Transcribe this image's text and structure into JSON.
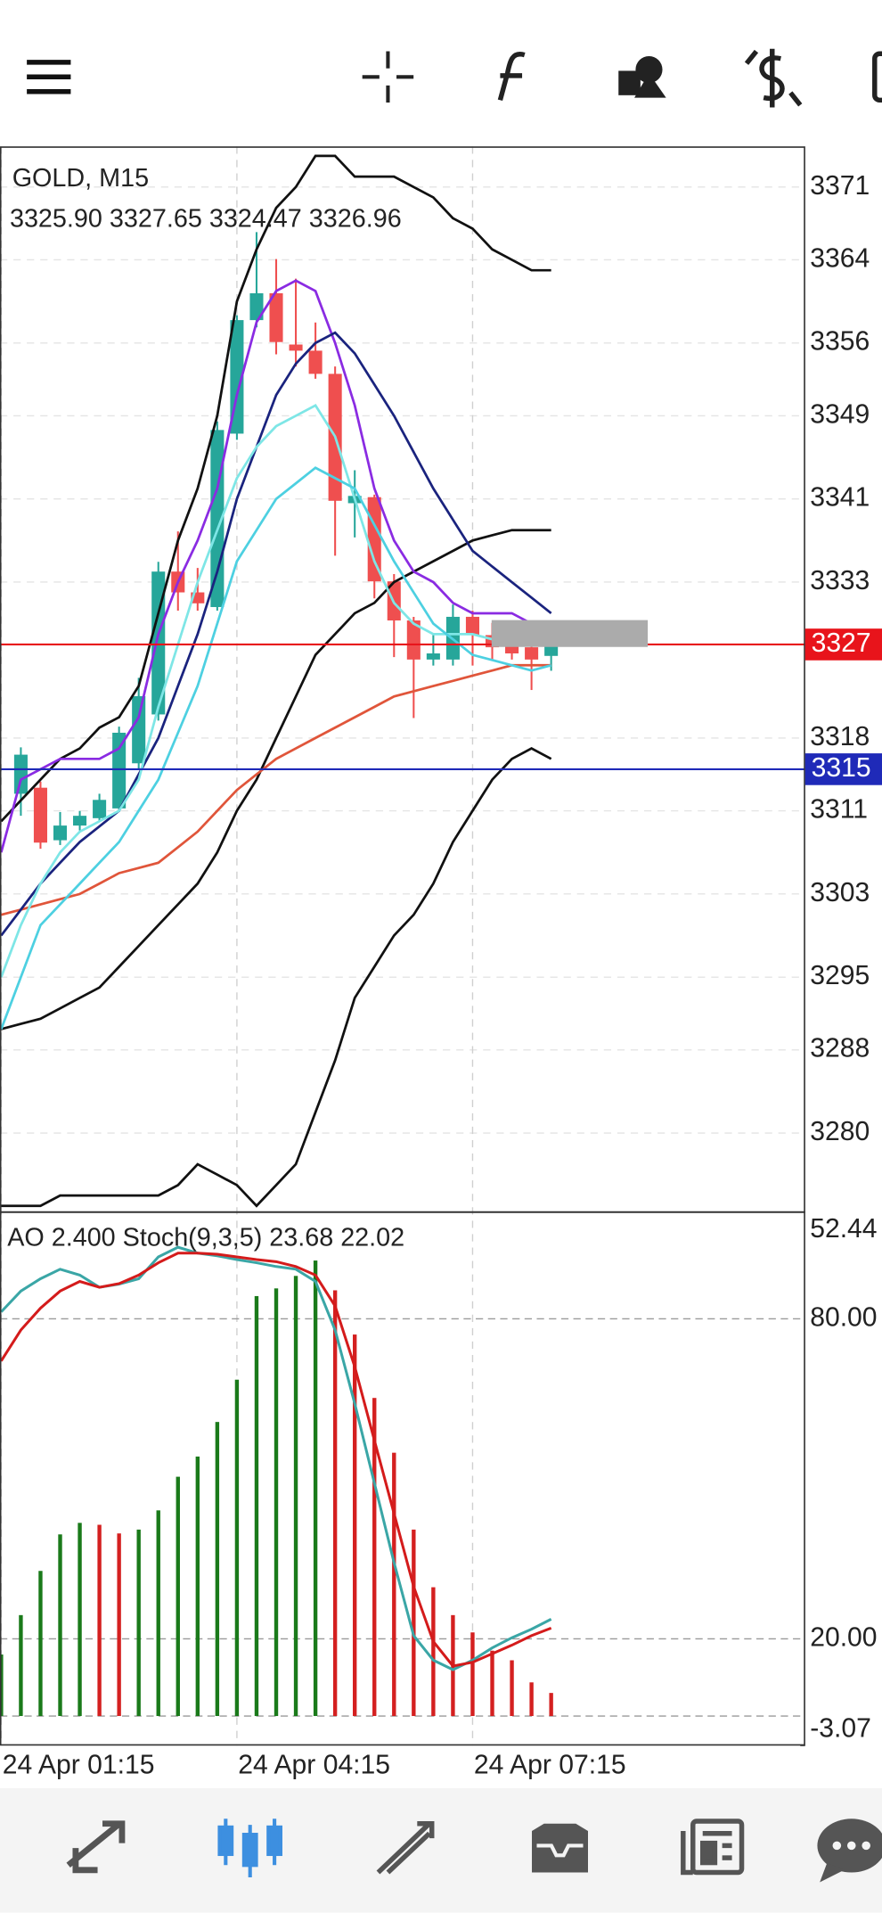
{
  "chart_data": [
    {
      "type": "candlestick",
      "title": "GOLD, M15",
      "ohlc_labels": [
        "3325.90",
        "3327.65",
        "3324.47",
        "3326.96"
      ],
      "categories": [
        "24 Apr 01:15",
        null,
        null,
        null,
        null,
        null,
        null,
        null,
        null,
        null,
        null,
        null,
        "24 Apr 04:15",
        null,
        null,
        null,
        null,
        null,
        null,
        null,
        null,
        null,
        null,
        null,
        "24 Apr 07:15",
        null,
        null,
        null,
        null
      ],
      "open": [
        null,
        3312.64,
        3313.22,
        3308.17,
        3309.58,
        3310.29,
        3311.23,
        3315.57,
        3320.27,
        3334.01,
        3332.01,
        3330.6,
        3347.28,
        3358.2,
        3360.78,
        3355.85,
        3355.26,
        3353.03,
        3340.59,
        3341.17,
        3333.07,
        3329.31,
        3325.55,
        3325.55,
        3329.66,
        3327.9,
        3327.32,
        3326.73,
        3325.9
      ],
      "high": [
        null,
        3317.1,
        3313.81,
        3310.88,
        3310.99,
        3312.64,
        3319.1,
        3323.79,
        3334.95,
        3337.88,
        3334.36,
        3348.45,
        3358.67,
        3366.66,
        3364.07,
        3362.19,
        3357.97,
        3353.74,
        3343.76,
        3341.41,
        3333.77,
        3329.66,
        3327.9,
        3330.84,
        3330.25,
        3329.08,
        3327.9,
        3327.32,
        3327.65
      ],
      "low": [
        null,
        3310.52,
        3307.35,
        3307.71,
        3309.11,
        3310.05,
        3310.88,
        3314.99,
        3319.68,
        3330.25,
        3330.25,
        3330.25,
        3346.69,
        3357.5,
        3354.91,
        3353.74,
        3352.56,
        3335.54,
        3337.3,
        3331.43,
        3325.79,
        3319.92,
        3324.97,
        3324.97,
        3324.97,
        3325.55,
        3325.55,
        3322.62,
        3324.47
      ],
      "close": [
        null,
        3316.4,
        3307.94,
        3309.58,
        3310.52,
        3312.05,
        3318.51,
        3322.03,
        3334.01,
        3332.01,
        3330.96,
        3347.63,
        3358.2,
        3360.78,
        3356.09,
        3355.26,
        3353.03,
        3340.82,
        3341.29,
        3333.07,
        3329.31,
        3325.55,
        3326.14,
        3329.66,
        3327.9,
        3326.73,
        3326.14,
        3325.55,
        3326.96
      ],
      "up_color": "#26a69a",
      "down_color": "#ef4f4f",
      "lines": [
        {
          "color": "#111111",
          "values": [
            3310,
            3312,
            3314,
            3316,
            3317,
            3319,
            3320,
            3323,
            3330,
            3337,
            3342,
            3349,
            3360,
            3365,
            3369,
            3371,
            3374,
            3374,
            3372,
            3372,
            3372,
            3371,
            3370,
            3368,
            3367,
            3365,
            3364,
            3363,
            3363
          ]
        },
        {
          "color": "#111111",
          "values": [
            3290,
            3290.5,
            3291,
            3292,
            3293,
            3294,
            3296,
            3298,
            3300,
            3302,
            3304,
            3307,
            3311,
            3314,
            3318,
            3322,
            3326,
            3328,
            3330,
            3331,
            3333,
            3334,
            3335,
            3336,
            3337,
            3337.5,
            3338,
            3338,
            3338
          ]
        },
        {
          "color": "#111111",
          "values": [
            3273,
            3273,
            3273,
            3274,
            3274,
            3274,
            3274,
            3274,
            3274,
            3275,
            3277,
            3276,
            3275,
            3273,
            3275,
            3277,
            3282,
            3287,
            3293,
            3296,
            3299,
            3301,
            3304,
            3308,
            3311,
            3314,
            3316,
            3317,
            3316
          ]
        },
        {
          "color": "#e0553a",
          "values": [
            3301,
            3301.5,
            3302,
            3302.5,
            3303,
            3304,
            3305,
            3305.5,
            3306,
            3307.5,
            3309,
            3311,
            3313,
            3314.5,
            3316,
            3317,
            3318,
            3319,
            3320,
            3321,
            3322,
            3322.5,
            3323,
            3323.5,
            3324,
            3324.5,
            3325,
            3325,
            3325
          ]
        },
        {
          "color": "#8a2be2",
          "values": [
            3307,
            3314,
            3315,
            3316,
            3316,
            3316,
            3317,
            3320,
            3328,
            3333,
            3337,
            3342,
            3351,
            3358,
            3361,
            3362,
            3361,
            3356,
            3350,
            3342,
            3337,
            3334,
            3333,
            3331,
            3330,
            3330,
            3330,
            3329,
            3328
          ]
        },
        {
          "color": "#1a237e",
          "values": [
            3299,
            3301.5,
            3304,
            3306,
            3308,
            3309.5,
            3311,
            3314.5,
            3318,
            3323,
            3328,
            3334,
            3341,
            3346,
            3351,
            3354,
            3356,
            3357,
            3355,
            3352,
            3349,
            3345.5,
            3342,
            3339,
            3336,
            3334.5,
            3333,
            3331.5,
            3330
          ]
        },
        {
          "color": "#7ee6e6",
          "values": [
            3295,
            3300,
            3304,
            3307,
            3309,
            3310,
            3311,
            3314,
            3321,
            3327,
            3333,
            3338,
            3343,
            3346,
            3348,
            3349,
            3350,
            3347,
            3341,
            3335,
            3331,
            3329,
            3328,
            3328,
            3328,
            3327.5,
            3327,
            3327,
            3327
          ]
        },
        {
          "color": "#4dd0e1",
          "values": [
            3290,
            3295,
            3300,
            3302,
            3304,
            3306,
            3308,
            3311,
            3314,
            3318.5,
            3323,
            3329,
            3335,
            3338,
            3341,
            3342.5,
            3344,
            3343,
            3342,
            3338.5,
            3335,
            3332,
            3329,
            3327.5,
            3326,
            3325.5,
            3325,
            3324.5,
            3325
          ]
        }
      ],
      "price_lines": [
        {
          "value": 3327,
          "color": "#e8141b"
        },
        {
          "value": 3315,
          "color": "#1f2ab8"
        }
      ],
      "ylim": [
        3272.4,
        3374.9
      ],
      "yticks": [
        3371,
        3364,
        3356,
        3349,
        3341,
        3333,
        3318,
        3311,
        3303,
        3295,
        3288,
        3280
      ],
      "grid": true
    },
    {
      "type": "indicator",
      "title": "AO 2.400 Stoch(9,3,5) 23.68 22.02",
      "ylim": [
        0,
        100
      ],
      "yticks": [
        {
          "value": 80,
          "label": "80.00"
        },
        {
          "value": 20,
          "label": "20.00"
        }
      ],
      "y2lim": [
        -3.07,
        52.44
      ],
      "y2ticks": [
        52.44,
        -3.07
      ],
      "series": [
        {
          "type": "bar",
          "axis": "y2",
          "values": [
            6.4,
            10.5,
            15.1,
            18.9,
            20.1,
            19.9,
            19.0,
            19.4,
            21.4,
            24.9,
            27.0,
            30.6,
            35.0,
            43.7,
            44.5,
            45.8,
            47.4,
            44.3,
            39.7,
            33.1,
            27.4,
            19.4,
            13.4,
            10.5,
            8.7,
            6.8,
            5.8,
            3.5,
            2.4
          ],
          "colors": [
            "#1a7a1a",
            "#1a7a1a",
            "#1a7a1a",
            "#1a7a1a",
            "#1a7a1a",
            "#d42020",
            "#d42020",
            "#1a7a1a",
            "#1a7a1a",
            "#1a7a1a",
            "#1a7a1a",
            "#1a7a1a",
            "#1a7a1a",
            "#1a7a1a",
            "#1a7a1a",
            "#1a7a1a",
            "#1a7a1a",
            "#d42020",
            "#d42020",
            "#d42020",
            "#d42020",
            "#d42020",
            "#d42020",
            "#d42020",
            "#d42020",
            "#d42020",
            "#d42020",
            "#d42020",
            "#d42020"
          ]
        },
        {
          "type": "line",
          "color": "#3aa6a6",
          "values": [
            81.3,
            85.2,
            87.5,
            89.3,
            88.2,
            85.9,
            86.5,
            87.5,
            91.6,
            93.4,
            92.3,
            91.8,
            91.1,
            90.5,
            89.8,
            89.3,
            87.0,
            77.9,
            64.1,
            49.2,
            34.3,
            20.6,
            16.0,
            14.2,
            16.0,
            18.3,
            20.2,
            21.8,
            23.68
          ]
        },
        {
          "type": "line",
          "color": "#d41b1b",
          "values": [
            72.1,
            77.9,
            82.0,
            85.2,
            87.0,
            85.9,
            86.6,
            88.2,
            90.5,
            92.3,
            92.3,
            92.1,
            91.6,
            91.1,
            90.7,
            89.8,
            88.2,
            82.4,
            71.0,
            57.2,
            43.5,
            29.8,
            19.5,
            14.9,
            15.6,
            17.2,
            18.8,
            20.6,
            22.02
          ]
        }
      ]
    }
  ]
}
